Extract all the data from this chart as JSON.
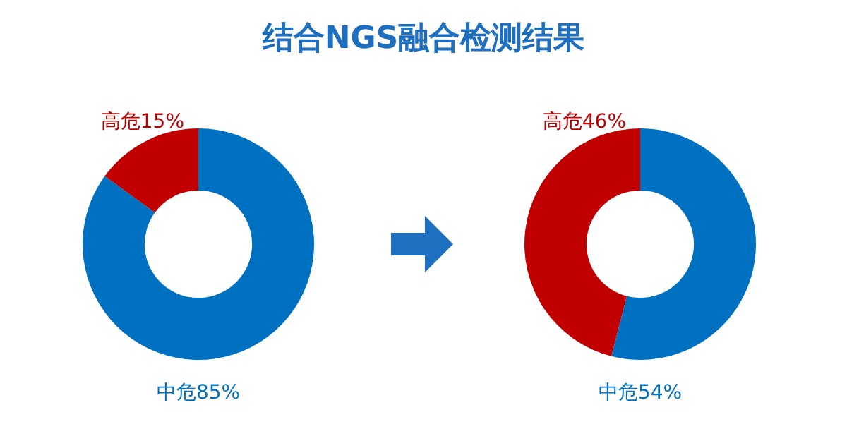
{
  "chart_data": [
    {
      "type": "donut",
      "title": "结合NGS融合检测结果",
      "categories": [
        "中危",
        "高危"
      ],
      "values": [
        85,
        15
      ],
      "colors": [
        "#0070c0",
        "#c00000"
      ],
      "value_labels": [
        "85%",
        "15%"
      ]
    },
    {
      "type": "donut",
      "categories": [
        "中危",
        "高危"
      ],
      "values": [
        54,
        46
      ],
      "colors": [
        "#0070c0",
        "#c00000"
      ],
      "value_labels": [
        "54%",
        "46%"
      ]
    }
  ]
}
